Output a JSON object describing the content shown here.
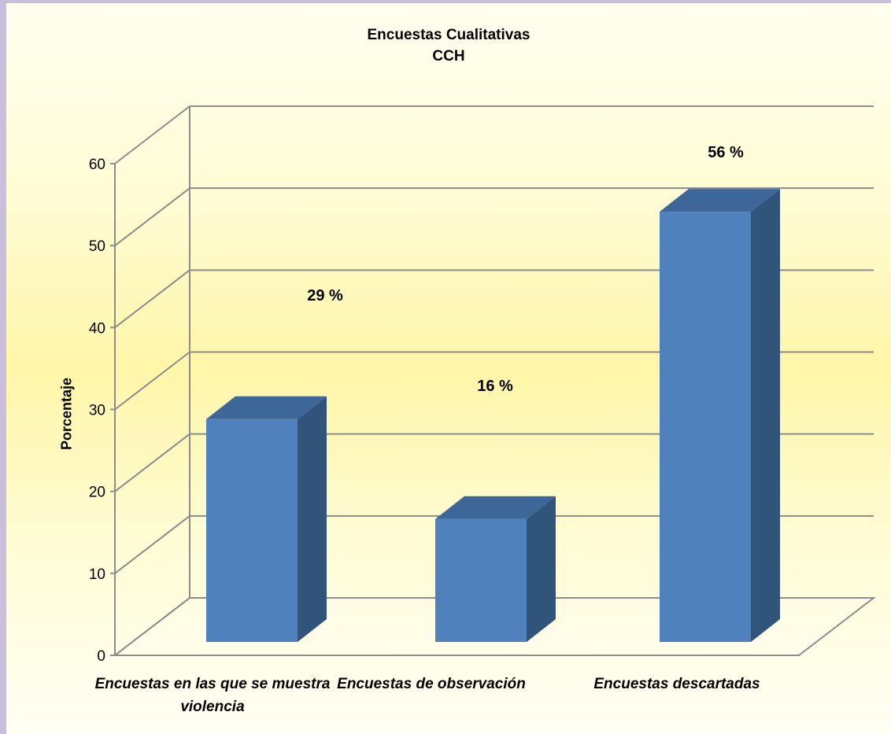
{
  "chart_data": {
    "type": "bar",
    "title": "Encuestas Cualitativas",
    "subtitle": "CCH",
    "ylabel": "Porcentaje",
    "xlabel": "",
    "categories": [
      "Encuestas en las que se muestra violencia",
      "Encuestas de observación",
      "Encuestas descartadas"
    ],
    "values": [
      29,
      16,
      56
    ],
    "data_labels": [
      "29 %",
      "16 %",
      "56 %"
    ],
    "ylim": [
      0,
      60
    ],
    "yticks": [
      0,
      10,
      20,
      30,
      40,
      50,
      60
    ],
    "grid": true,
    "style": "3d-column",
    "colors": {
      "bar_front": "#4f81bd",
      "bar_side": "#31547a",
      "bar_top": "#3e6799",
      "grid": "#8c8c8c"
    }
  }
}
